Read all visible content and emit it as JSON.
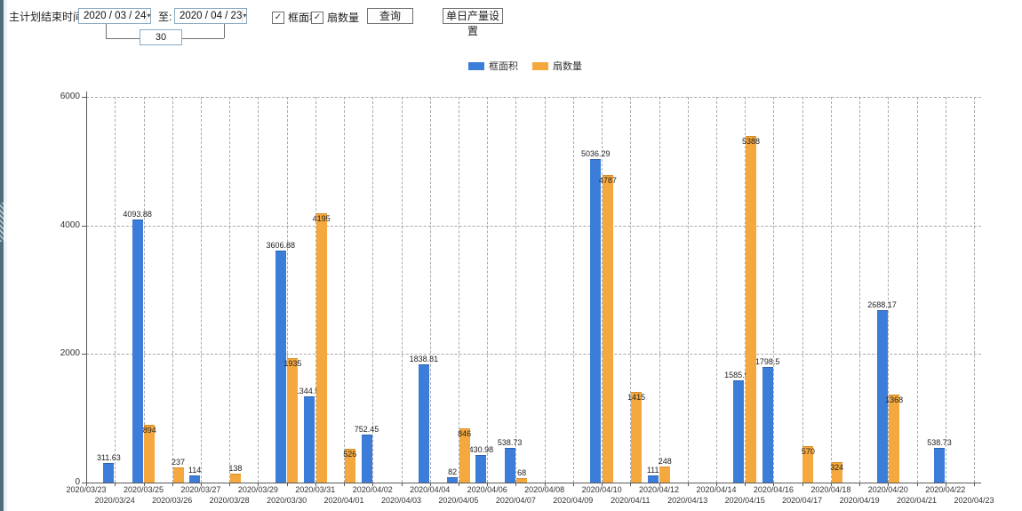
{
  "icons": {
    "check": "✓",
    "dropdown": "▾"
  },
  "toolbar": {
    "label_end_time": "主计划结束时间:",
    "date_from": "2020 / 03 / 24",
    "to_label": "至:",
    "date_to": "2020 / 04 / 23",
    "days_between": "30",
    "checkbox_area_label": "框面积",
    "checkbox_fan_label": "扇数量",
    "query_button": "查询",
    "daily_output_button": "单日产量设置"
  },
  "legend": {
    "items": [
      {
        "label": "框面积",
        "color": "#3b7dd8"
      },
      {
        "label": "扇数量",
        "color": "#f5a83d"
      }
    ]
  },
  "chart_data": {
    "type": "bar",
    "title": "",
    "xlabel": "",
    "ylabel": "",
    "ylim": [
      0,
      6000
    ],
    "yticks": [
      0,
      2000,
      4000,
      6000
    ],
    "grid": true,
    "legend_position": "top",
    "categories": [
      "2020/03/23",
      "2020/03/24",
      "2020/03/25",
      "2020/03/26",
      "2020/03/27",
      "2020/03/28",
      "2020/03/29",
      "2020/03/30",
      "2020/03/31",
      "2020/04/01",
      "2020/04/02",
      "2020/04/03",
      "2020/04/04",
      "2020/04/05",
      "2020/04/06",
      "2020/04/07",
      "2020/04/08",
      "2020/04/09",
      "2020/04/10",
      "2020/04/11",
      "2020/04/12",
      "2020/04/13",
      "2020/04/14",
      "2020/04/15",
      "2020/04/16",
      "2020/04/17",
      "2020/04/18",
      "2020/04/19",
      "2020/04/20",
      "2020/04/21",
      "2020/04/22",
      "2020/04/23"
    ],
    "series": [
      {
        "name": "框面积",
        "key": "frame-area",
        "color": "#3b7dd8",
        "cap_color": "#2e63ac",
        "values": [
          null,
          311.63,
          4093.88,
          null,
          114,
          null,
          null,
          3606.88,
          1344.95,
          null,
          752.45,
          null,
          1838.81,
          82,
          430.98,
          538.73,
          null,
          null,
          5036.29,
          null,
          111,
          null,
          null,
          1585.96,
          1798.5,
          null,
          null,
          null,
          2688.17,
          null,
          538.73,
          null
        ]
      },
      {
        "name": "扇数量",
        "key": "fan-quantity",
        "color": "#f5a83d",
        "cap_color": "#d68e28",
        "values": [
          null,
          null,
          894,
          237,
          null,
          138,
          null,
          1935,
          4195,
          526,
          null,
          null,
          null,
          846,
          null,
          68,
          null,
          null,
          4787,
          1415,
          248,
          null,
          null,
          5388,
          null,
          570,
          324,
          null,
          1368,
          null,
          null,
          null
        ]
      }
    ]
  }
}
